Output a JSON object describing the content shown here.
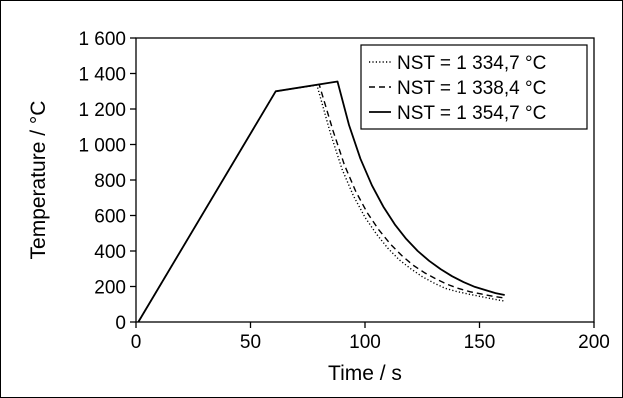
{
  "chart_data": {
    "type": "line",
    "title": "",
    "xlabel": "Time / s",
    "ylabel": "Temperature / °C",
    "xlim": [
      0,
      200
    ],
    "ylim": [
      0,
      1600
    ],
    "x_ticks": [
      0,
      50,
      100,
      150,
      200
    ],
    "x_tick_labels": [
      "0",
      "50",
      "100",
      "150",
      "200"
    ],
    "y_ticks": [
      0,
      200,
      400,
      600,
      800,
      1000,
      1200,
      1400,
      1600
    ],
    "y_tick_labels": [
      "0",
      "200",
      "400",
      "600",
      "800",
      "1 000",
      "1 200",
      "1 400",
      "1 600"
    ],
    "grid": false,
    "legend_position": "top-right",
    "series": [
      {
        "name": "NST = 1 334,7 °C",
        "line_style": "dotted",
        "color": "#000000",
        "points": [
          [
            1,
            0
          ],
          [
            61,
            1300
          ],
          [
            79,
            1335
          ],
          [
            85,
            1060
          ],
          [
            90,
            860
          ],
          [
            95,
            710
          ],
          [
            100,
            590
          ],
          [
            105,
            495
          ],
          [
            110,
            415
          ],
          [
            115,
            350
          ],
          [
            120,
            300
          ],
          [
            125,
            255
          ],
          [
            130,
            220
          ],
          [
            135,
            190
          ],
          [
            140,
            172
          ],
          [
            145,
            158
          ],
          [
            150,
            145
          ],
          [
            155,
            132
          ],
          [
            161,
            118
          ]
        ]
      },
      {
        "name": "NST = 1 338,4 °C",
        "line_style": "dashed",
        "color": "#000000",
        "points": [
          [
            1,
            0
          ],
          [
            61,
            1300
          ],
          [
            80,
            1338
          ],
          [
            86,
            1080
          ],
          [
            91,
            885
          ],
          [
            96,
            735
          ],
          [
            101,
            615
          ],
          [
            106,
            520
          ],
          [
            111,
            440
          ],
          [
            116,
            375
          ],
          [
            121,
            320
          ],
          [
            126,
            278
          ],
          [
            131,
            242
          ],
          [
            136,
            212
          ],
          [
            141,
            188
          ],
          [
            146,
            170
          ],
          [
            151,
            157
          ],
          [
            156,
            145
          ],
          [
            161,
            135
          ]
        ]
      },
      {
        "name": "NST = 1 354,7 °C",
        "line_style": "solid",
        "color": "#000000",
        "points": [
          [
            1,
            0
          ],
          [
            61,
            1300
          ],
          [
            88,
            1355
          ],
          [
            93,
            1110
          ],
          [
            98,
            920
          ],
          [
            103,
            770
          ],
          [
            108,
            650
          ],
          [
            113,
            550
          ],
          [
            118,
            468
          ],
          [
            123,
            400
          ],
          [
            128,
            345
          ],
          [
            133,
            298
          ],
          [
            138,
            258
          ],
          [
            143,
            225
          ],
          [
            148,
            198
          ],
          [
            153,
            178
          ],
          [
            157,
            163
          ],
          [
            161,
            152
          ]
        ]
      }
    ]
  }
}
